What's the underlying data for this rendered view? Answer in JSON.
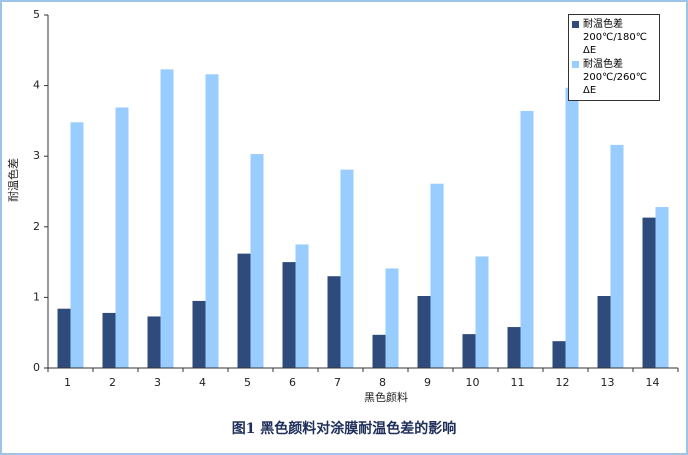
{
  "chart_data": {
    "type": "bar",
    "caption": "图1  黑色颜料对涂膜耐温色差的影响",
    "xlabel": "黑色颜料",
    "ylabel": "耐温色差",
    "categories": [
      "1",
      "2",
      "3",
      "4",
      "5",
      "6",
      "7",
      "8",
      "9",
      "10",
      "11",
      "12",
      "13",
      "14"
    ],
    "series": [
      {
        "name": "耐温色差200℃/180℃ ΔE",
        "color": "#2f4b7c",
        "values": [
          0.84,
          0.78,
          0.73,
          0.95,
          1.62,
          1.5,
          1.3,
          0.47,
          1.02,
          0.48,
          0.58,
          0.38,
          1.02,
          2.13
        ]
      },
      {
        "name": "耐温色差200℃/260℃ ΔE",
        "color": "#99ccff",
        "values": [
          3.48,
          3.69,
          4.23,
          4.16,
          3.03,
          1.75,
          2.81,
          1.41,
          2.61,
          1.58,
          3.64,
          3.97,
          3.16,
          2.28
        ]
      }
    ],
    "ylim": [
      0,
      5
    ],
    "yticks": [
      0,
      1,
      2,
      3,
      4,
      5
    ],
    "grid": false,
    "legend": "upper right"
  }
}
